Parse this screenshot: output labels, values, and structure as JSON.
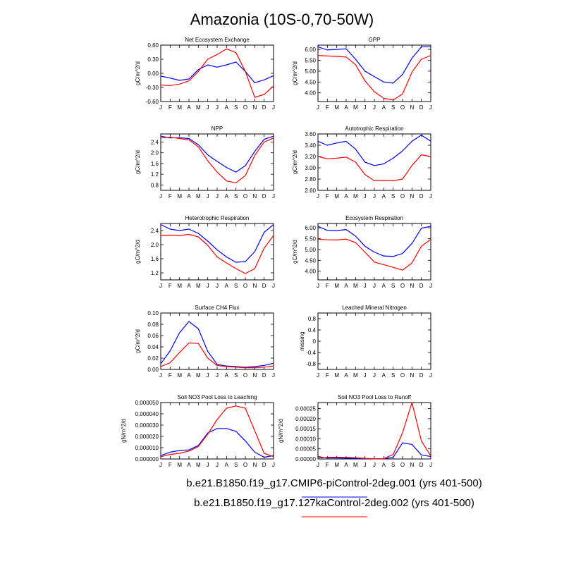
{
  "title": "Amazonia (10S-0,70-50W)",
  "colors": {
    "series1": "#0000ff",
    "series2": "#ff0000",
    "axis": "#000000"
  },
  "legend": [
    {
      "label": "b.e21.B1850.f19_g17.CMIP6-piControl-2deg.001 (yrs 401-500)",
      "color": "#0000ff"
    },
    {
      "label": "b.e21.B1850.f19_g17.127kaControl-2deg.002 (yrs 401-500)",
      "color": "#ff0000"
    }
  ],
  "chart_data": [
    {
      "type": "line",
      "title": "Net Ecosystem Exchange",
      "ylabel": "gC/m^2/d",
      "x": [
        "J",
        "F",
        "M",
        "A",
        "M",
        "J",
        "J",
        "A",
        "S",
        "O",
        "N",
        "D",
        "J"
      ],
      "ylim": [
        -0.6,
        0.6
      ],
      "yticks": [
        "-0.60",
        "-0.30",
        "0.00",
        "0.30",
        "0.60"
      ],
      "series": [
        {
          "values": [
            -0.06,
            -0.1,
            -0.15,
            -0.12,
            0.08,
            0.18,
            0.13,
            0.18,
            0.24,
            0.04,
            -0.2,
            -0.14,
            -0.05
          ]
        },
        {
          "values": [
            -0.25,
            -0.26,
            -0.23,
            -0.16,
            0.04,
            0.3,
            0.4,
            0.52,
            0.44,
            0.04,
            -0.51,
            -0.45,
            -0.27
          ]
        }
      ]
    },
    {
      "type": "line",
      "title": "GPP",
      "ylabel": "gC/m^2/d",
      "x": [
        "J",
        "F",
        "M",
        "A",
        "M",
        "J",
        "J",
        "A",
        "S",
        "O",
        "N",
        "D",
        "J"
      ],
      "ylim": [
        3.6,
        6.2
      ],
      "yticks": [
        "4.00",
        "4.50",
        "5.00",
        "5.50",
        "6.00"
      ],
      "series": [
        {
          "values": [
            6.12,
            5.98,
            6.0,
            6.03,
            5.55,
            5.0,
            4.75,
            4.5,
            4.45,
            4.85,
            5.6,
            6.12,
            6.12
          ]
        },
        {
          "values": [
            5.72,
            5.7,
            5.68,
            5.65,
            5.3,
            4.55,
            4.05,
            3.75,
            3.67,
            3.95,
            4.95,
            5.55,
            5.72
          ]
        }
      ]
    },
    {
      "type": "line",
      "title": "NPP",
      "ylabel": "gC/m^2/d",
      "x": [
        "J",
        "F",
        "M",
        "A",
        "M",
        "J",
        "J",
        "A",
        "S",
        "O",
        "N",
        "D",
        "J"
      ],
      "ylim": [
        0.6,
        2.7
      ],
      "yticks": [
        "0.8",
        "1.2",
        "1.6",
        "2.0",
        "2.4"
      ],
      "series": [
        {
          "values": [
            2.62,
            2.55,
            2.56,
            2.53,
            2.3,
            1.92,
            1.68,
            1.45,
            1.28,
            1.52,
            2.05,
            2.5,
            2.62
          ]
        },
        {
          "values": [
            2.55,
            2.58,
            2.53,
            2.48,
            2.22,
            1.7,
            1.28,
            0.95,
            0.88,
            1.15,
            1.9,
            2.4,
            2.55
          ]
        }
      ]
    },
    {
      "type": "line",
      "title": "Autotrophic Respiration",
      "ylabel": "gC/m^2/d",
      "x": [
        "J",
        "F",
        "M",
        "A",
        "M",
        "J",
        "J",
        "A",
        "S",
        "O",
        "N",
        "D",
        "J"
      ],
      "ylim": [
        2.6,
        3.6
      ],
      "yticks": [
        "2.60",
        "2.80",
        "3.00",
        "3.20",
        "3.40",
        "3.60"
      ],
      "series": [
        {
          "values": [
            3.47,
            3.4,
            3.44,
            3.47,
            3.33,
            3.1,
            3.04,
            3.07,
            3.17,
            3.3,
            3.47,
            3.58,
            3.47
          ]
        },
        {
          "values": [
            3.2,
            3.16,
            3.17,
            3.19,
            3.1,
            2.88,
            2.77,
            2.78,
            2.77,
            2.8,
            3.04,
            3.23,
            3.2
          ]
        }
      ]
    },
    {
      "type": "line",
      "title": "Heterotrophic Respiration",
      "ylabel": "gC/m^2/d",
      "x": [
        "J",
        "F",
        "M",
        "A",
        "M",
        "J",
        "J",
        "A",
        "S",
        "O",
        "N",
        "D",
        "J"
      ],
      "ylim": [
        1.0,
        2.6
      ],
      "yticks": [
        "1.2",
        "1.6",
        "2.0",
        "2.4"
      ],
      "series": [
        {
          "values": [
            2.57,
            2.44,
            2.4,
            2.44,
            2.32,
            2.1,
            1.85,
            1.65,
            1.5,
            1.52,
            1.8,
            2.35,
            2.57
          ]
        },
        {
          "values": [
            2.26,
            2.27,
            2.26,
            2.29,
            2.22,
            1.98,
            1.65,
            1.48,
            1.32,
            1.18,
            1.32,
            1.9,
            2.26
          ]
        }
      ]
    },
    {
      "type": "line",
      "title": "Ecosystem Respiration",
      "ylabel": "gC/m^2/d",
      "x": [
        "J",
        "F",
        "M",
        "A",
        "M",
        "J",
        "J",
        "A",
        "S",
        "O",
        "N",
        "D",
        "J"
      ],
      "ylim": [
        3.6,
        6.2
      ],
      "yticks": [
        "4.00",
        "4.50",
        "5.00",
        "5.50",
        "6.00"
      ],
      "series": [
        {
          "values": [
            6.07,
            5.88,
            5.87,
            5.92,
            5.62,
            5.15,
            4.88,
            4.7,
            4.68,
            4.82,
            5.28,
            5.98,
            6.07
          ]
        },
        {
          "values": [
            5.47,
            5.45,
            5.44,
            5.48,
            5.32,
            4.88,
            4.42,
            4.3,
            4.18,
            4.05,
            4.38,
            5.15,
            5.47
          ]
        }
      ]
    },
    {
      "type": "line",
      "title": "Surface CH4 Flux",
      "ylabel": "gC/m^2/d",
      "x": [
        "J",
        "F",
        "M",
        "A",
        "M",
        "J",
        "J",
        "A",
        "S",
        "O",
        "N",
        "D",
        "J"
      ],
      "ylim": [
        0.0,
        0.1
      ],
      "yticks": [
        "0.00",
        "0.02",
        "0.04",
        "0.06",
        "0.08",
        "0.10"
      ],
      "series": [
        {
          "values": [
            0.01,
            0.033,
            0.065,
            0.085,
            0.072,
            0.032,
            0.009,
            0.006,
            0.005,
            0.004,
            0.005,
            0.007,
            0.011
          ]
        },
        {
          "values": [
            0.005,
            0.012,
            0.03,
            0.047,
            0.046,
            0.02,
            0.007,
            0.005,
            0.004,
            0.003,
            0.003,
            0.004,
            0.006
          ]
        }
      ]
    },
    {
      "type": "line",
      "title": "Leached Mineral Nitrogen",
      "ylabel": "missing",
      "x": [
        "J",
        "F",
        "M",
        "A",
        "M",
        "J",
        "J",
        "A",
        "S",
        "O",
        "N",
        "D",
        "J"
      ],
      "ylim": [
        -1.0,
        1.0
      ],
      "yticks": [
        "-0.8",
        "-0.4",
        "0",
        "0.4",
        "0.8"
      ],
      "series": []
    },
    {
      "type": "line",
      "title": "Soil NO3 Pool Loss to Leaching",
      "ylabel": "gN/m^2/d",
      "x": [
        "J",
        "F",
        "M",
        "A",
        "M",
        "J",
        "J",
        "A",
        "S",
        "O",
        "N",
        "D",
        "J"
      ],
      "ylim": [
        0.0,
        5e-05
      ],
      "yticks": [
        "0.000000",
        "0.000010",
        "0.000020",
        "0.000030",
        "0.000040",
        "0.000050"
      ],
      "series": [
        {
          "values": [
            3e-06,
            6e-06,
            7.5e-06,
            8e-06,
            1.2e-05,
            2.3e-05,
            2.7e-05,
            2.7e-05,
            2.45e-05,
            1.6e-05,
            6e-06,
            1.5e-06,
            3e-06
          ]
        },
        {
          "values": [
            2e-06,
            4e-06,
            5e-06,
            7e-06,
            1.1e-05,
            2.2e-05,
            3.5e-05,
            4.5e-05,
            4.7e-05,
            4.5e-05,
            2.5e-05,
            5e-06,
            2e-06
          ]
        }
      ]
    },
    {
      "type": "line",
      "title": "Soil NO3 Pool Loss to Runoff",
      "ylabel": "gN/m^2/d",
      "x": [
        "J",
        "F",
        "M",
        "A",
        "M",
        "J",
        "J",
        "A",
        "S",
        "O",
        "N",
        "D",
        "J"
      ],
      "ylim": [
        0.0,
        0.00028
      ],
      "yticks": [
        "0.00000",
        "0.00005",
        "0.00010",
        "0.00015",
        "0.00020",
        "0.00025"
      ],
      "series": [
        {
          "values": [
            1.2e-05,
            5e-06,
            5e-06,
            4e-06,
            3e-06,
            2e-06,
            1e-06,
            1e-06,
            8e-06,
            8e-05,
            7.2e-05,
            2e-05,
            1.2e-05
          ]
        },
        {
          "values": [
            5e-06,
            8e-06,
            9e-06,
            8e-06,
            6e-06,
            3e-06,
            1e-06,
            2e-06,
            2.2e-05,
            0.00013,
            0.00028,
            9e-05,
            1.5e-05
          ]
        }
      ]
    }
  ]
}
